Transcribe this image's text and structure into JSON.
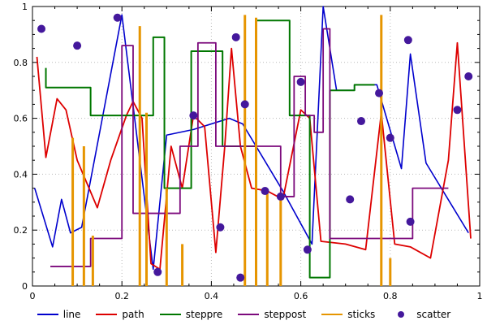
{
  "chart_data": {
    "type": "line",
    "title": "",
    "xlabel": "",
    "ylabel": "",
    "xlim": [
      0,
      1
    ],
    "ylim": [
      0,
      1
    ],
    "grid": true,
    "grid_color": "#b9b9b9",
    "axis_color": "#000000",
    "legend_position": "bottom",
    "tick_values": [
      0,
      0.2,
      0.4,
      0.6,
      0.8,
      1
    ],
    "x_ticks": [
      "0",
      "0.2",
      "0.4",
      "0.6",
      "0.8",
      "1"
    ],
    "y_ticks": [
      "0",
      "0.2",
      "0.4",
      "0.6",
      "0.8",
      "1"
    ],
    "series": [
      {
        "name": "line",
        "type": "line",
        "color": "#0000cd",
        "width": 1.6,
        "points": [
          [
            0.005,
            0.35
          ],
          [
            0.045,
            0.14
          ],
          [
            0.065,
            0.31
          ],
          [
            0.085,
            0.19
          ],
          [
            0.11,
            0.21
          ],
          [
            0.2,
            0.97
          ],
          [
            0.27,
            0.06
          ],
          [
            0.3,
            0.54
          ],
          [
            0.36,
            0.56
          ],
          [
            0.44,
            0.6
          ],
          [
            0.47,
            0.58
          ],
          [
            0.56,
            0.34
          ],
          [
            0.625,
            0.15
          ],
          [
            0.65,
            1.0
          ],
          [
            0.68,
            0.7
          ],
          [
            0.72,
            0.7
          ],
          [
            0.72,
            0.72
          ],
          [
            0.77,
            0.72
          ],
          [
            0.825,
            0.42
          ],
          [
            0.845,
            0.83
          ],
          [
            0.88,
            0.44
          ],
          [
            0.975,
            0.19
          ]
        ]
      },
      {
        "name": "path",
        "type": "line",
        "color": "#dd0000",
        "width": 1.8,
        "points": [
          [
            0.01,
            0.82
          ],
          [
            0.03,
            0.46
          ],
          [
            0.055,
            0.67
          ],
          [
            0.075,
            0.63
          ],
          [
            0.1,
            0.45
          ],
          [
            0.145,
            0.28
          ],
          [
            0.175,
            0.45
          ],
          [
            0.21,
            0.61
          ],
          [
            0.225,
            0.66
          ],
          [
            0.245,
            0.6
          ],
          [
            0.265,
            0.08
          ],
          [
            0.285,
            0.06
          ],
          [
            0.31,
            0.5
          ],
          [
            0.335,
            0.35
          ],
          [
            0.36,
            0.61
          ],
          [
            0.385,
            0.57
          ],
          [
            0.41,
            0.12
          ],
          [
            0.43,
            0.5
          ],
          [
            0.445,
            0.85
          ],
          [
            0.465,
            0.5
          ],
          [
            0.49,
            0.35
          ],
          [
            0.525,
            0.34
          ],
          [
            0.56,
            0.31
          ],
          [
            0.6,
            0.63
          ],
          [
            0.62,
            0.6
          ],
          [
            0.645,
            0.16
          ],
          [
            0.7,
            0.15
          ],
          [
            0.745,
            0.13
          ],
          [
            0.78,
            0.62
          ],
          [
            0.81,
            0.15
          ],
          [
            0.845,
            0.14
          ],
          [
            0.89,
            0.1
          ],
          [
            0.93,
            0.45
          ],
          [
            0.95,
            0.87
          ],
          [
            0.98,
            0.17
          ]
        ]
      },
      {
        "name": "steppre",
        "type": "steps-pre",
        "color": "#007700",
        "width": 2,
        "points": [
          [
            0.03,
            0.78
          ],
          [
            0.13,
            0.71
          ],
          [
            0.27,
            0.61
          ],
          [
            0.295,
            0.89
          ],
          [
            0.355,
            0.35
          ],
          [
            0.425,
            0.84
          ],
          [
            0.5,
            0.5
          ],
          [
            0.575,
            0.95
          ],
          [
            0.62,
            0.61
          ],
          [
            0.665,
            0.03
          ],
          [
            0.72,
            0.7
          ],
          [
            0.765,
            0.72
          ]
        ]
      },
      {
        "name": "steppost",
        "type": "steps-post",
        "color": "#7c0a7c",
        "width": 1.8,
        "points": [
          [
            0.04,
            0.07
          ],
          [
            0.13,
            0.17
          ],
          [
            0.2,
            0.86
          ],
          [
            0.225,
            0.26
          ],
          [
            0.33,
            0.5
          ],
          [
            0.37,
            0.87
          ],
          [
            0.41,
            0.5
          ],
          [
            0.52,
            0.5
          ],
          [
            0.555,
            0.32
          ],
          [
            0.585,
            0.75
          ],
          [
            0.61,
            0.61
          ],
          [
            0.63,
            0.55
          ],
          [
            0.65,
            0.92
          ],
          [
            0.665,
            0.17
          ],
          [
            0.83,
            0.17
          ],
          [
            0.85,
            0.35
          ],
          [
            0.93,
            0.35
          ]
        ]
      },
      {
        "name": "sticks",
        "type": "sticks",
        "color": "#e69500",
        "width": 3,
        "points": [
          [
            0.09,
            0.53
          ],
          [
            0.115,
            0.5
          ],
          [
            0.135,
            0.18
          ],
          [
            0.24,
            0.93
          ],
          [
            0.255,
            0.62
          ],
          [
            0.3,
            0.35
          ],
          [
            0.335,
            0.15
          ],
          [
            0.475,
            0.97
          ],
          [
            0.5,
            0.96
          ],
          [
            0.525,
            0.34
          ],
          [
            0.555,
            0.32
          ],
          [
            0.78,
            0.97
          ],
          [
            0.8,
            0.1
          ]
        ]
      },
      {
        "name": "scatter",
        "type": "scatter",
        "color": "#44189c",
        "radius": 5,
        "points": [
          [
            0.02,
            0.92
          ],
          [
            0.1,
            0.86
          ],
          [
            0.19,
            0.96
          ],
          [
            0.28,
            0.05
          ],
          [
            0.36,
            0.61
          ],
          [
            0.42,
            0.21
          ],
          [
            0.455,
            0.89
          ],
          [
            0.465,
            0.03
          ],
          [
            0.475,
            0.65
          ],
          [
            0.52,
            0.34
          ],
          [
            0.555,
            0.32
          ],
          [
            0.6,
            0.73
          ],
          [
            0.615,
            0.13
          ],
          [
            0.71,
            0.31
          ],
          [
            0.735,
            0.59
          ],
          [
            0.775,
            0.69
          ],
          [
            0.8,
            0.53
          ],
          [
            0.84,
            0.88
          ],
          [
            0.845,
            0.23
          ],
          [
            0.95,
            0.63
          ],
          [
            0.975,
            0.75
          ]
        ]
      }
    ]
  }
}
